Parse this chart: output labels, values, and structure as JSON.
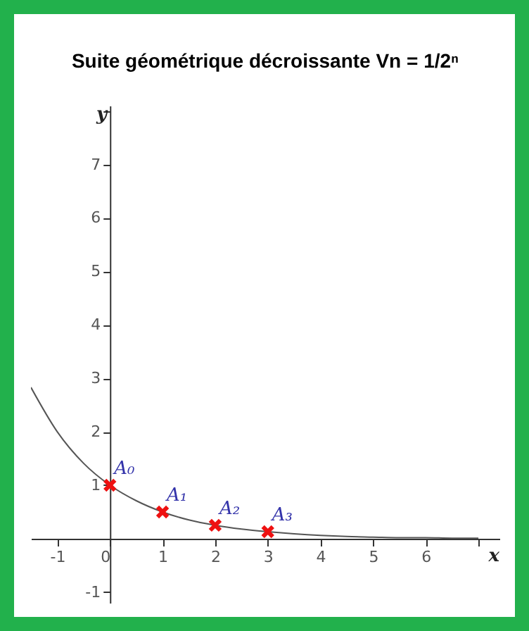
{
  "chart_data": {
    "type": "line",
    "title": "Suite géométrique décroissante  Vn = 1/2ⁿ",
    "xlabel": "x",
    "ylabel": "y",
    "xlim": [
      -1.5,
      7.4
    ],
    "ylim": [
      -1.2,
      8.1
    ],
    "xticks": [
      -1,
      0,
      1,
      2,
      3,
      4,
      5,
      6,
      {
        "value": 7,
        "label": null
      }
    ],
    "yticks": [
      -1,
      1,
      2,
      3,
      4,
      5,
      6,
      7,
      {
        "value": 8,
        "label": null
      }
    ],
    "grid": false,
    "series": [
      {
        "color": "#555555",
        "marker": "none",
        "x": [
          -1.5,
          -1,
          -0.5,
          0,
          0.5,
          1,
          1.5,
          2,
          2.5,
          3,
          3.5,
          4,
          4.5,
          5,
          5.5,
          6,
          6.5,
          7
        ],
        "values": [
          2.83,
          2,
          1.41,
          1,
          0.71,
          0.5,
          0.35,
          0.25,
          0.18,
          0.13,
          0.09,
          0.06,
          0.04,
          0.03,
          0.02,
          0.02,
          0.01,
          0.01
        ]
      },
      {
        "type": "scatter",
        "color": "#ee1111",
        "marker": "cross",
        "x": [
          0,
          1,
          2,
          3
        ],
        "values": [
          1,
          0.5,
          0.25,
          0.13
        ]
      }
    ],
    "annotations": [
      {
        "text": "A₀",
        "x": 0,
        "y": 1
      },
      {
        "text": "A₁",
        "x": 1,
        "y": 0.5
      },
      {
        "text": "A₂",
        "x": 2,
        "y": 0.25
      },
      {
        "text": "A₃",
        "x": 3,
        "y": 0.13
      }
    ]
  }
}
